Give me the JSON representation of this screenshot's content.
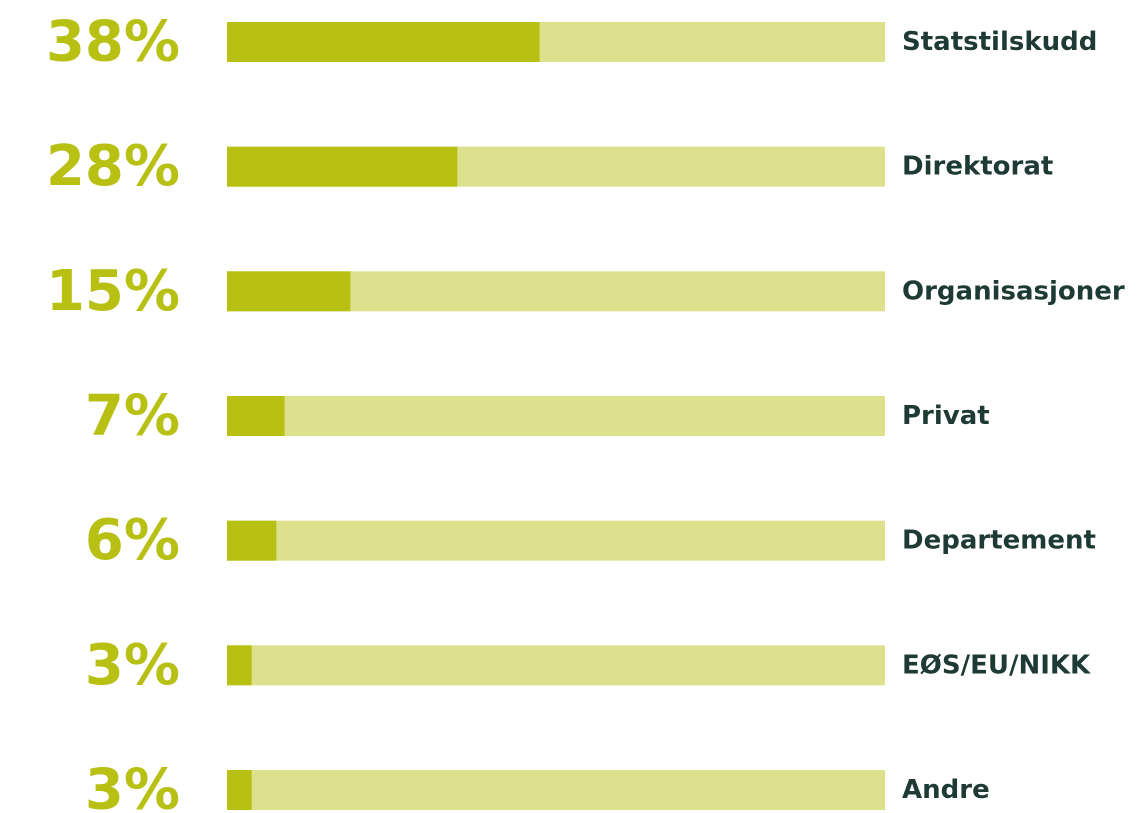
{
  "chart_data": {
    "type": "bar",
    "orientation": "horizontal",
    "categories": [
      "Statstilskudd",
      "Direktorat",
      "Organisasjoner",
      "Privat",
      "Departement",
      "EØS/EU/NIKK",
      "Andre"
    ],
    "values": [
      38,
      28,
      15,
      7,
      6,
      3,
      3
    ],
    "value_labels": [
      "38%",
      "28%",
      "15%",
      "7%",
      "6%",
      "3%",
      "3%"
    ],
    "color": "#b8c014",
    "track_color": "#dde08c",
    "label_color": "#b8c014",
    "category_color": "#1e3a34",
    "xlim": [
      0,
      80
    ]
  }
}
